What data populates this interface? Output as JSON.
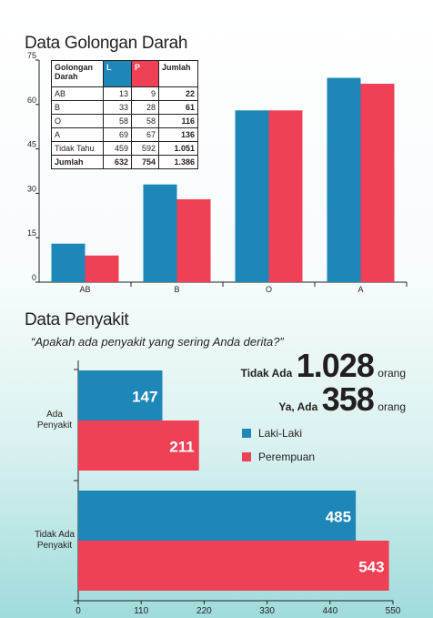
{
  "section1": {
    "title": "Data Golongan Darah"
  },
  "table": {
    "headers": [
      "Golongan Darah",
      "L",
      "P",
      "Jumlah"
    ],
    "rows": [
      [
        "AB",
        "13",
        "9",
        "22"
      ],
      [
        "B",
        "33",
        "28",
        "61"
      ],
      [
        "O",
        "58",
        "58",
        "116"
      ],
      [
        "A",
        "69",
        "67",
        "136"
      ],
      [
        "Tidak Tahu",
        "459",
        "592",
        "1.051"
      ],
      [
        "Jumlah",
        "632",
        "754",
        "1.386"
      ]
    ]
  },
  "section2": {
    "title": "Data Penyakit",
    "question": "“Apakah ada penyakit yang sering Anda derita?”"
  },
  "stats": [
    {
      "label": "Tidak Ada",
      "value": "1.028",
      "unit": "orang"
    },
    {
      "label": "Ya, Ada",
      "value": "358",
      "unit": "orang"
    }
  ],
  "legend": [
    {
      "label": "Laki-Laki",
      "color": "#1d87b8"
    },
    {
      "label": "Perempuan",
      "color": "#ef4056"
    }
  ],
  "colors": {
    "male": "#1d87b8",
    "female": "#ef4056",
    "axis": "#231f20"
  },
  "chart_data": [
    {
      "type": "bar",
      "title": "Data Golongan Darah",
      "categories": [
        "AB",
        "B",
        "O",
        "A"
      ],
      "series": [
        {
          "name": "L",
          "values": [
            13,
            33,
            58,
            69
          ]
        },
        {
          "name": "P",
          "values": [
            9,
            28,
            58,
            67
          ]
        }
      ],
      "ylim": [
        0,
        75
      ],
      "yticks": [
        "0",
        "15",
        "30",
        "45",
        "60",
        "75"
      ],
      "grid": false
    },
    {
      "type": "bar",
      "orientation": "horizontal",
      "title": "Data Penyakit",
      "categories": [
        "Ada Penyakit",
        "Tidak Ada Penyakit"
      ],
      "series": [
        {
          "name": "Laki-Laki",
          "values": [
            147,
            485
          ]
        },
        {
          "name": "Perempuan",
          "values": [
            211,
            543
          ]
        }
      ],
      "xlim": [
        0,
        550
      ],
      "xticks": [
        "0",
        "110",
        "220",
        "330",
        "440",
        "550"
      ],
      "grid": false
    }
  ]
}
